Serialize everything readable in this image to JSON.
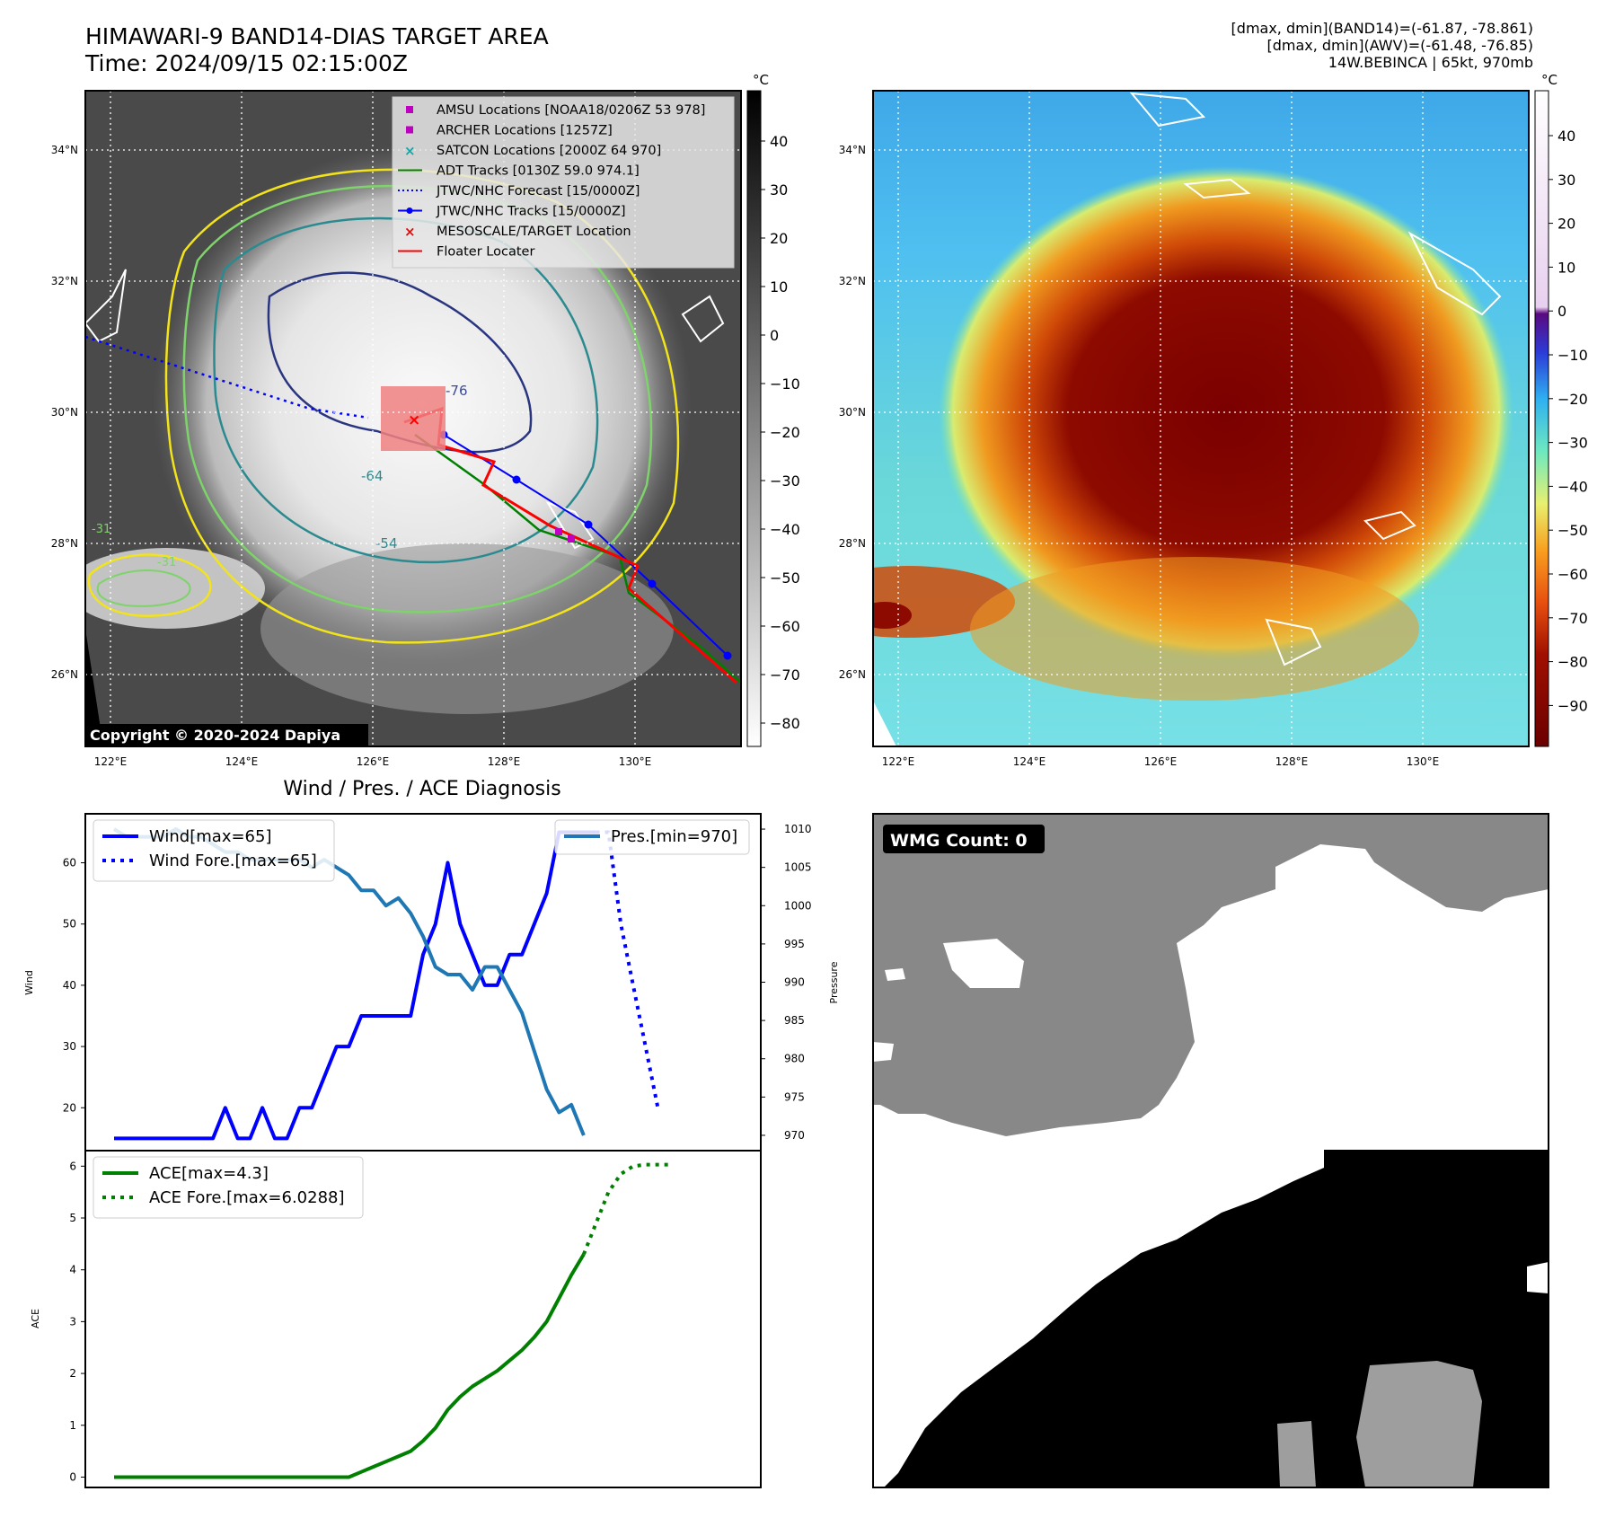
{
  "header": {
    "title_line1": "HIMAWARI-9 BAND14-DIAS TARGET AREA",
    "title_line2": "Time: 2024/09/15 02:15:00Z",
    "info_line1": "[dmax, dmin](BAND14)=(-61.87, -78.861)",
    "info_line2": "[dmax, dmin](AWV)=(-61.48, -76.85)",
    "info_line3": "14W.BEBINCA | 65kt, 970mb"
  },
  "map_axes": {
    "lon_ticks": [
      "122°E",
      "124°E",
      "126°E",
      "128°E",
      "130°E"
    ],
    "lat_ticks": [
      "34°N",
      "32°N",
      "30°N",
      "28°N",
      "26°N"
    ]
  },
  "ir_panel": {
    "colorbar_unit": "°C",
    "colorbar_ticks": [
      "40",
      "30",
      "20",
      "10",
      "0",
      "−10",
      "−20",
      "−30",
      "−40",
      "−50",
      "−60",
      "−70",
      "−80"
    ],
    "contour_labels": [
      "-76",
      "-64",
      "-54",
      "-31",
      "-31"
    ],
    "copyright": "Copyright © 2020-2024 Dapiya",
    "legend": [
      {
        "label": "AMSU Locations [NOAA18/0206Z 53 978]",
        "color": "#c000c0",
        "marker": "square"
      },
      {
        "label": "ARCHER Locations [1257Z]",
        "color": "#c000c0",
        "marker": "square"
      },
      {
        "label": "SATCON Locations [2000Z 64 970]",
        "color": "#00b0b0",
        "marker": "x"
      },
      {
        "label": "ADT Tracks [0130Z 59.0 974.1]",
        "color": "#008000",
        "marker": "line"
      },
      {
        "label": "JTWC/NHC Forecast [15/0000Z]",
        "color": "#0000ff",
        "marker": "dotted"
      },
      {
        "label": "JTWC/NHC Tracks [15/0000Z]",
        "color": "#0000ff",
        "marker": "line-dot"
      },
      {
        "label": "MESOSCALE/TARGET Location",
        "color": "#ff0000",
        "marker": "x"
      },
      {
        "label": "Floater Locater",
        "color": "#ff0000",
        "marker": "line"
      }
    ]
  },
  "wv_panel": {
    "colorbar_unit": "°C",
    "colorbar_ticks": [
      "40",
      "30",
      "20",
      "10",
      "0",
      "−10",
      "−20",
      "−30",
      "−40",
      "−50",
      "−60",
      "−70",
      "−80",
      "−90"
    ]
  },
  "wmg_panel": {
    "label": "WMG Count: 0"
  },
  "chart_data": [
    {
      "type": "line",
      "title": "Wind / Pres. / ACE Diagnosis",
      "ylabel": "Wind",
      "ylabel_right": "Pressure",
      "ylim": [
        13,
        68
      ],
      "ylim_right": [
        968,
        1012
      ],
      "yticks": [
        20,
        30,
        40,
        50,
        60
      ],
      "yticks_right": [
        970,
        975,
        980,
        985,
        990,
        995,
        1000,
        1005,
        1010
      ],
      "x_count": 51,
      "series": [
        {
          "name": "Wind[max=65]",
          "style": "solid",
          "color": "#0000ff",
          "values": [
            15,
            15,
            15,
            15,
            15,
            15,
            15,
            15,
            15,
            20,
            15,
            15,
            20,
            15,
            15,
            20,
            20,
            25,
            30,
            30,
            35,
            35,
            35,
            35,
            35,
            45,
            50,
            60,
            50,
            45,
            40,
            40,
            45,
            45,
            50,
            55,
            65,
            65,
            65,
            65
          ]
        },
        {
          "name": "Wind Fore.[max=65]",
          "style": "dotted",
          "color": "#0000ff",
          "x_start": 39,
          "values": [
            65,
            65,
            50,
            40,
            30,
            20
          ]
        },
        {
          "name": "Pres.[min=970]",
          "style": "solid",
          "color": "#1f77b4",
          "axis": "right",
          "values": [
            1010,
            1009,
            1009,
            1009,
            1009,
            1010,
            1009,
            1009,
            1008,
            1007,
            1007,
            1006,
            1006,
            1006,
            1006,
            1006,
            1005,
            1006,
            1005,
            1004,
            1002,
            1002,
            1000,
            1001,
            999,
            996,
            992,
            991,
            991,
            989,
            992,
            992,
            989,
            986,
            981,
            976,
            973,
            974,
            970
          ]
        }
      ]
    },
    {
      "type": "line",
      "ylabel": "ACE",
      "ylim": [
        -0.2,
        6.3
      ],
      "yticks": [
        0,
        1,
        2,
        3,
        4,
        5,
        6
      ],
      "x_count": 51,
      "series": [
        {
          "name": "ACE[max=4.3]",
          "style": "solid",
          "color": "#008000",
          "values": [
            0,
            0,
            0,
            0,
            0,
            0,
            0,
            0,
            0,
            0,
            0,
            0,
            0,
            0,
            0,
            0,
            0,
            0,
            0,
            0,
            0.1,
            0.2,
            0.3,
            0.4,
            0.5,
            0.7,
            0.95,
            1.3,
            1.55,
            1.75,
            1.9,
            2.05,
            2.25,
            2.45,
            2.7,
            3.0,
            3.45,
            3.9,
            4.3
          ]
        },
        {
          "name": "ACE Fore.[max=6.0288]",
          "style": "dotted",
          "color": "#008000",
          "x_start": 38,
          "values": [
            4.3,
            4.9,
            5.5,
            5.85,
            6.0,
            6.03,
            6.03,
            6.03
          ]
        }
      ]
    }
  ]
}
